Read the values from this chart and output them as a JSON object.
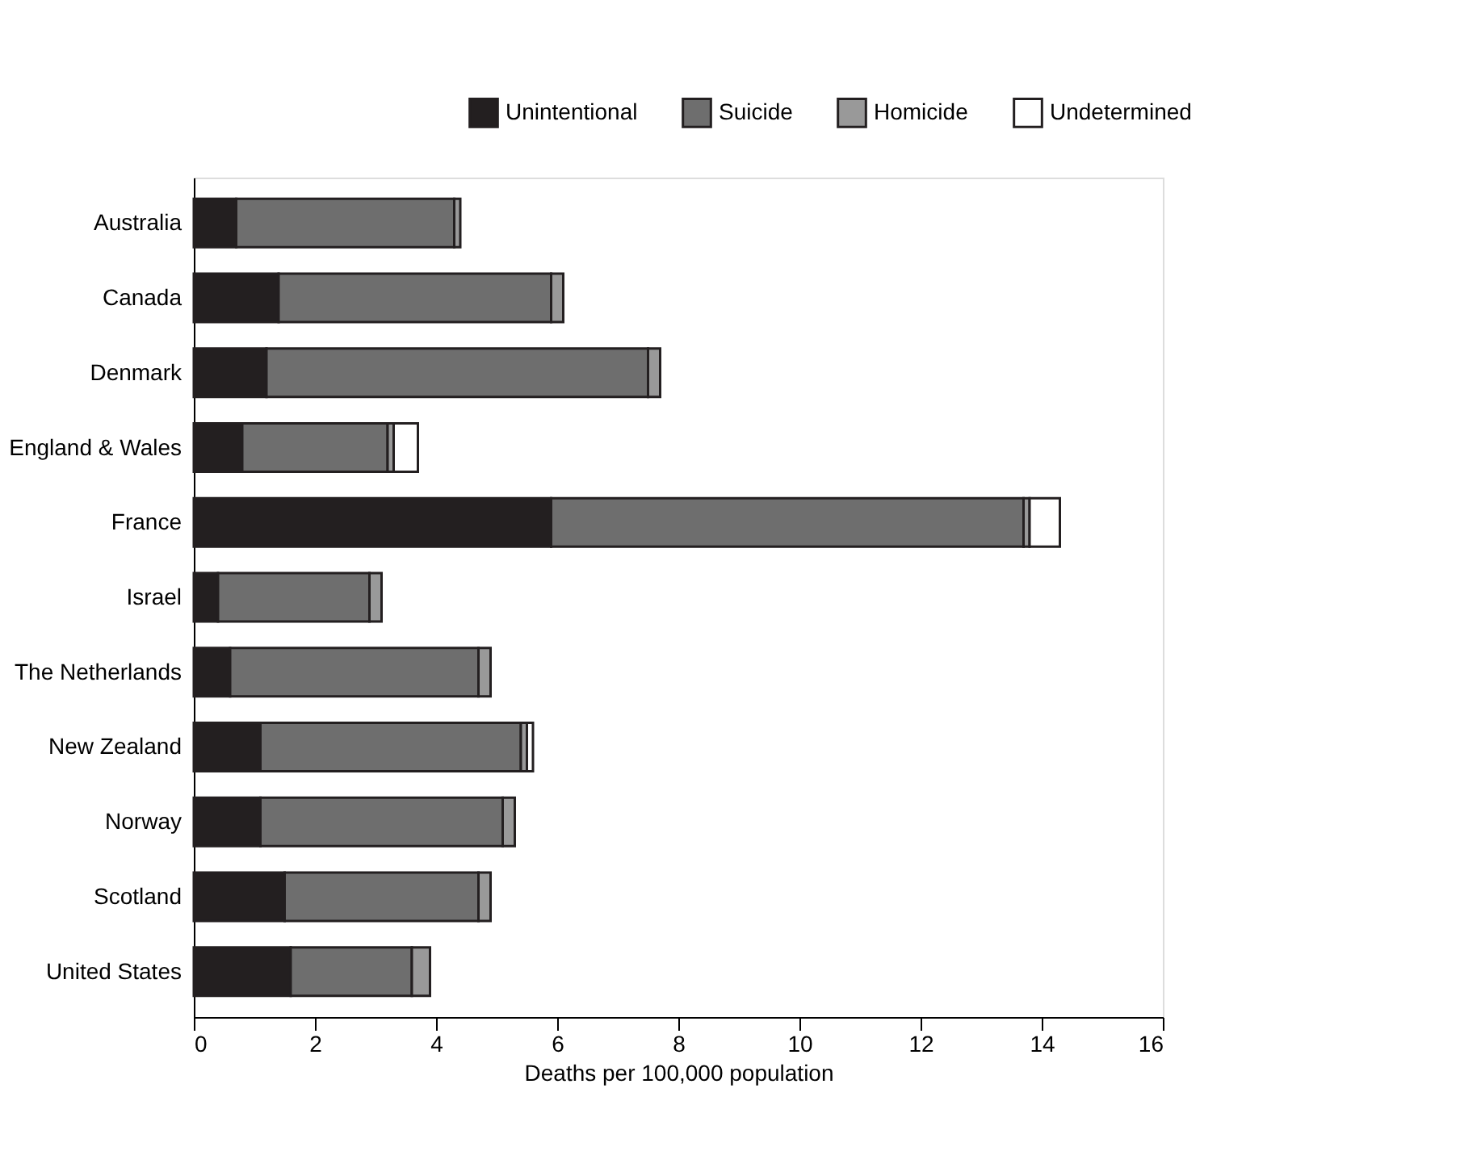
{
  "chart_data": {
    "type": "bar",
    "orientation": "horizontal",
    "stacked": true,
    "xlabel": "Deaths per 100,000 population",
    "categories": [
      "Australia",
      "Canada",
      "Denmark",
      "England & Wales",
      "France",
      "Israel",
      "The Netherlands",
      "New Zealand",
      "Norway",
      "Scotland",
      "United States"
    ],
    "series": [
      {
        "name": "Unintentional",
        "color": "#231f20",
        "values": [
          0.7,
          1.4,
          1.2,
          0.8,
          5.9,
          0.4,
          0.6,
          1.1,
          1.1,
          1.5,
          1.6
        ]
      },
      {
        "name": "Suicide",
        "color": "#6e6e6e",
        "values": [
          3.6,
          4.5,
          6.3,
          2.4,
          7.8,
          2.5,
          4.1,
          4.3,
          4.0,
          3.2,
          2.0
        ]
      },
      {
        "name": "Homicide",
        "color": "#999999",
        "values": [
          0.1,
          0.2,
          0.2,
          0.1,
          0.1,
          0.2,
          0.2,
          0.1,
          0.2,
          0.2,
          0.3
        ]
      },
      {
        "name": "Undetermined",
        "color": "#ffffff",
        "values": [
          0,
          0,
          0,
          0.4,
          0.5,
          0,
          0,
          0.1,
          0,
          0,
          0
        ]
      }
    ],
    "xlim": [
      0,
      16
    ],
    "xticks": [
      0,
      2,
      4,
      6,
      8,
      10,
      12,
      14,
      16
    ],
    "grid": false,
    "legend": "top right"
  }
}
